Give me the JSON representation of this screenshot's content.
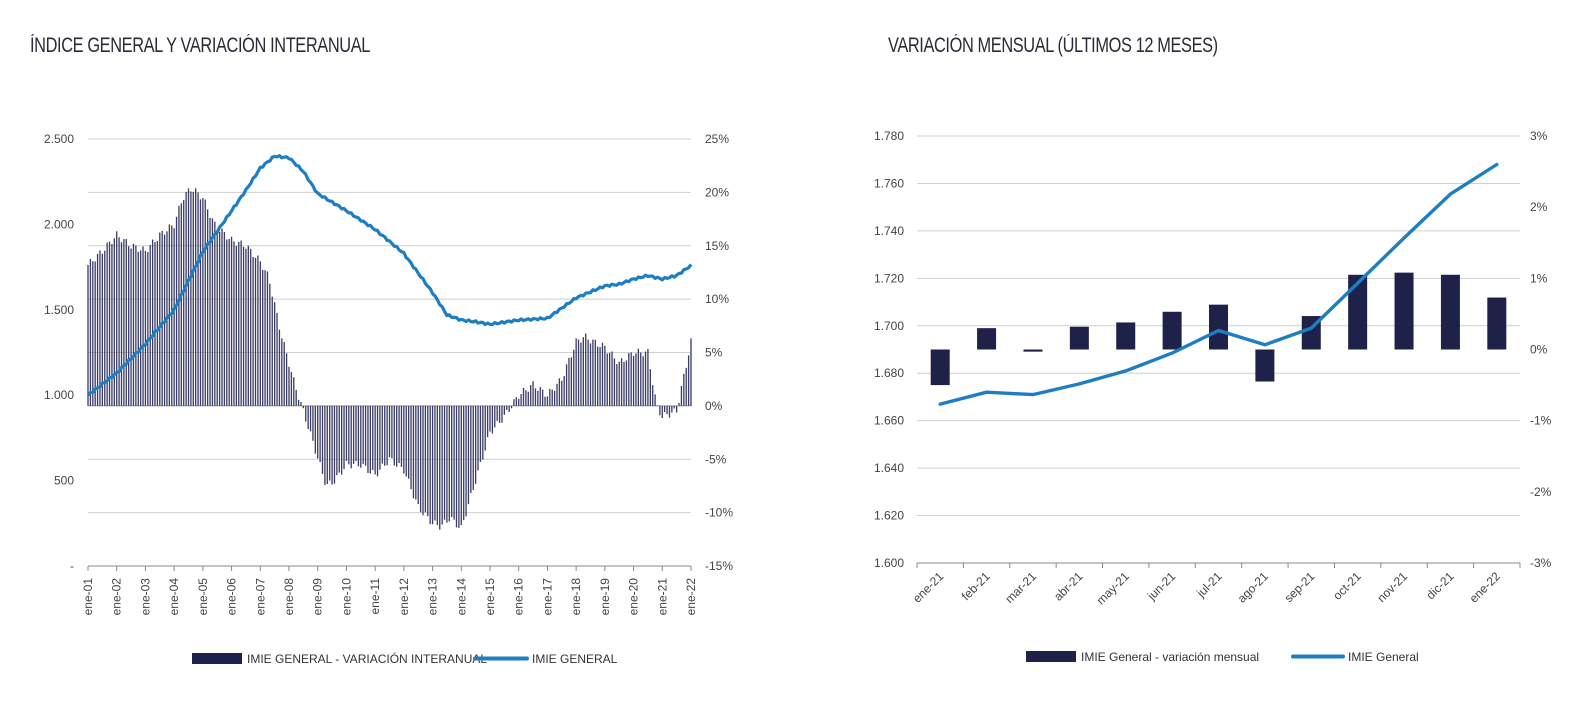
{
  "colors": {
    "bar": "#1e2148",
    "line": "#1f7ec2",
    "grid": "#cfcfcf",
    "axis": "#888888"
  },
  "chart_data": [
    {
      "type": "bar+line",
      "title": "ÍNDICE GENERAL Y VARIACIÓN INTERANUAL",
      "left_axis": {
        "ticks": [
          "2.500",
          "2.000",
          "1.500",
          "1.000",
          "500",
          "-"
        ],
        "min": 0,
        "max": 2500
      },
      "right_axis": {
        "ticks": [
          "25%",
          "20%",
          "15%",
          "10%",
          "5%",
          "0%",
          "-5%",
          "-10%",
          "-15%"
        ],
        "min": -15,
        "max": 25
      },
      "categories": [
        "ene-01",
        "ene-02",
        "ene-03",
        "ene-04",
        "ene-05",
        "ene-06",
        "ene-07",
        "ene-08",
        "ene-09",
        "ene-10",
        "ene-11",
        "ene-12",
        "ene-13",
        "ene-14",
        "ene-15",
        "ene-16",
        "ene-17",
        "ene-18",
        "ene-19",
        "ene-20",
        "ene-21",
        "ene-22"
      ],
      "bar_anchor_points": [
        [
          2001,
          13.2
        ],
        [
          2001.5,
          14.5
        ],
        [
          2002,
          16
        ],
        [
          2002.5,
          15
        ],
        [
          2003,
          14.5
        ],
        [
          2003.5,
          16
        ],
        [
          2004,
          17
        ],
        [
          2004.3,
          19.5
        ],
        [
          2004.6,
          20.4
        ],
        [
          2005,
          19.5
        ],
        [
          2005.4,
          17
        ],
        [
          2006,
          15.5
        ],
        [
          2006.5,
          15
        ],
        [
          2007,
          13.5
        ],
        [
          2007.3,
          12
        ],
        [
          2007.7,
          7
        ],
        [
          2008.2,
          2
        ],
        [
          2008.5,
          -0.5
        ],
        [
          2008.9,
          -4
        ],
        [
          2009.3,
          -7.5
        ],
        [
          2009.6,
          -7
        ],
        [
          2010,
          -5.5
        ],
        [
          2010.5,
          -5.5
        ],
        [
          2011,
          -6.5
        ],
        [
          2011.5,
          -5
        ],
        [
          2012,
          -6
        ],
        [
          2012.5,
          -9.5
        ],
        [
          2013,
          -11
        ],
        [
          2013.3,
          -11.3
        ],
        [
          2013.6,
          -10.5
        ],
        [
          2014,
          -11.5
        ],
        [
          2014.5,
          -7
        ],
        [
          2015,
          -2.5
        ],
        [
          2015.5,
          -1
        ],
        [
          2016,
          1
        ],
        [
          2016.5,
          2
        ],
        [
          2017,
          1
        ],
        [
          2017.5,
          2.5
        ],
        [
          2018,
          6
        ],
        [
          2018.3,
          6.5
        ],
        [
          2018.6,
          6
        ],
        [
          2019,
          5.5
        ],
        [
          2019.5,
          4
        ],
        [
          2020,
          5
        ],
        [
          2020.5,
          5
        ],
        [
          2020.8,
          0
        ],
        [
          2021,
          -1
        ],
        [
          2021.5,
          -0.5
        ],
        [
          2022,
          6
        ]
      ],
      "series": [
        {
          "name": "IMIE GENERAL - VARIACIÓN INTERANUAL",
          "axis": "right",
          "kind": "bar"
        },
        {
          "name": "IMIE GENERAL",
          "axis": "left",
          "kind": "line",
          "points": [
            [
              2001,
              1000
            ],
            [
              2002,
              1130
            ],
            [
              2003,
              1300
            ],
            [
              2004,
              1500
            ],
            [
              2005,
              1840
            ],
            [
              2006,
              2080
            ],
            [
              2006.5,
              2200
            ],
            [
              2007,
              2330
            ],
            [
              2007.5,
              2400
            ],
            [
              2008,
              2390
            ],
            [
              2008.5,
              2310
            ],
            [
              2009,
              2180
            ],
            [
              2010,
              2080
            ],
            [
              2011,
              1970
            ],
            [
              2012,
              1830
            ],
            [
              2013,
              1600
            ],
            [
              2013.5,
              1470
            ],
            [
              2014,
              1440
            ],
            [
              2014.5,
              1430
            ],
            [
              2015,
              1415
            ],
            [
              2016,
              1440
            ],
            [
              2017,
              1450
            ],
            [
              2018,
              1570
            ],
            [
              2019,
              1640
            ],
            [
              2019.5,
              1650
            ],
            [
              2020,
              1680
            ],
            [
              2020.5,
              1700
            ],
            [
              2021,
              1680
            ],
            [
              2021.5,
              1700
            ],
            [
              2022,
              1760
            ]
          ]
        }
      ],
      "legend": [
        "IMIE GENERAL - VARIACIÓN INTERANUAL",
        "IMIE GENERAL"
      ],
      "legend_position": "bottom"
    },
    {
      "type": "bar+line",
      "title": "VARIACIÓN MENSUAL (ÚLTIMOS 12 MESES)",
      "left_axis": {
        "ticks": [
          "1.780",
          "1.760",
          "1.740",
          "1.720",
          "1.700",
          "1.680",
          "1.660",
          "1.640",
          "1.620",
          "1.600"
        ],
        "min": 1600,
        "max": 1780
      },
      "right_axis": {
        "ticks": [
          "3%",
          "2%",
          "1%",
          "0%",
          "-1%",
          "-2%",
          "-3%"
        ],
        "min": -3,
        "max": 3
      },
      "categories": [
        "ene-21",
        "feb-21",
        "mar-21",
        "abr-21",
        "may-21",
        "jun-21",
        "jul-21",
        "ago-21",
        "sep-21",
        "oct-21",
        "nov-21",
        "dic-21",
        "ene-22"
      ],
      "series": [
        {
          "name": "IMIE General - variación mensual",
          "axis": "right",
          "kind": "bar",
          "values": [
            -0.5,
            0.3,
            -0.03,
            0.32,
            0.38,
            0.53,
            0.63,
            -0.45,
            0.47,
            1.05,
            1.08,
            1.05,
            0.73
          ]
        },
        {
          "name": "IMIE General",
          "axis": "left",
          "kind": "line",
          "values": [
            1667,
            1672,
            1671,
            1675.5,
            1681,
            1688.5,
            1698,
            1692,
            1699,
            1718,
            1737,
            1755.5,
            1768
          ]
        }
      ],
      "legend": [
        "IMIE General - variación mensual",
        "IMIE General"
      ],
      "legend_position": "bottom"
    }
  ]
}
